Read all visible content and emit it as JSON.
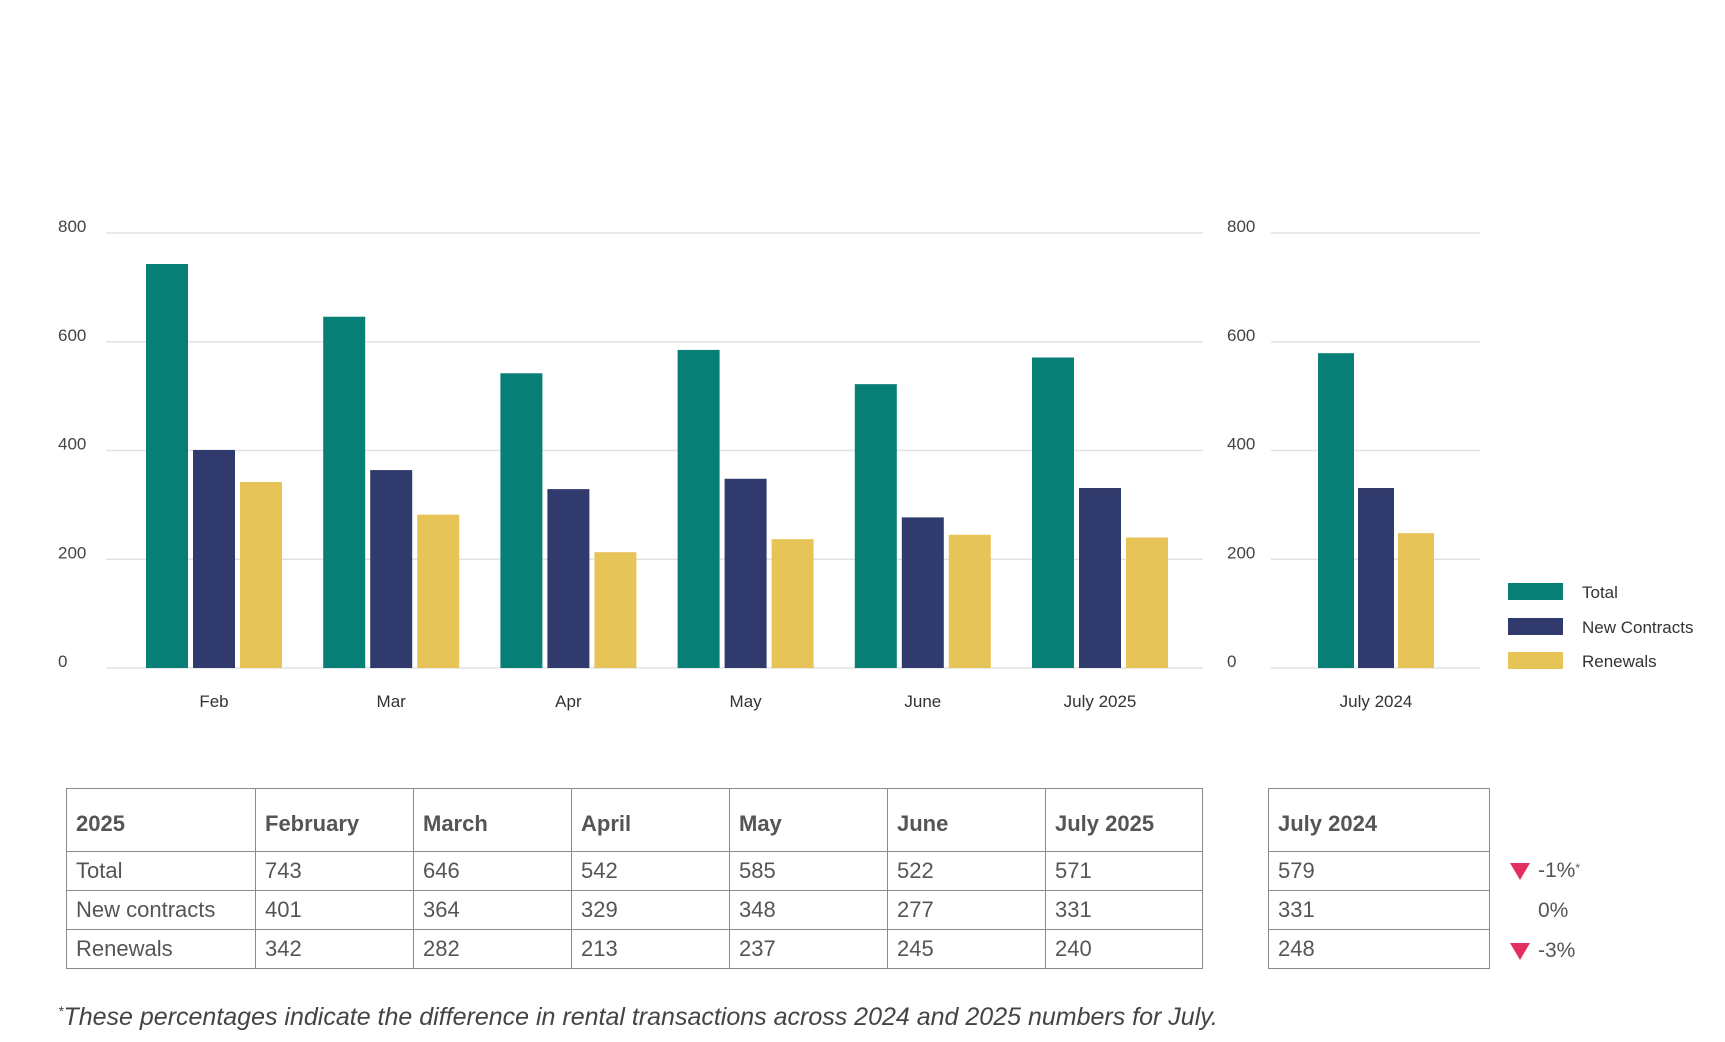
{
  "chart_data": [
    {
      "type": "bar",
      "categories": [
        "Feb",
        "Mar",
        "Apr",
        "May",
        "June",
        "July 2025"
      ],
      "series": [
        {
          "name": "Total",
          "values": [
            743,
            646,
            542,
            585,
            522,
            571
          ]
        },
        {
          "name": "New Contracts",
          "values": [
            401,
            364,
            329,
            348,
            277,
            331
          ]
        },
        {
          "name": "Renewals",
          "values": [
            342,
            282,
            213,
            237,
            245,
            240
          ]
        }
      ],
      "ylim": [
        0,
        800
      ],
      "yticks": [
        0,
        200,
        400,
        600,
        800
      ],
      "grid": true
    },
    {
      "type": "bar",
      "categories": [
        "July 2024"
      ],
      "series": [
        {
          "name": "Total",
          "values": [
            579
          ]
        },
        {
          "name": "New Contracts",
          "values": [
            331
          ]
        },
        {
          "name": "Renewals",
          "values": [
            248
          ]
        }
      ],
      "ylim": [
        0,
        800
      ],
      "yticks": [
        0,
        200,
        400,
        600,
        800
      ],
      "grid": true
    }
  ],
  "legend": {
    "placement": "right",
    "items": [
      {
        "label": "Total",
        "color": "#077e76"
      },
      {
        "label": "New Contracts",
        "color": "#303a6c"
      },
      {
        "label": "Renewals",
        "color": "#e6c458"
      }
    ]
  },
  "table": {
    "headers": [
      "2025",
      "February",
      "March",
      "April",
      "May",
      "June",
      "July 2025"
    ],
    "rows": [
      [
        "Total",
        "743",
        "646",
        "542",
        "585",
        "522",
        "571"
      ],
      [
        "New contracts",
        "401",
        "364",
        "329",
        "348",
        "277",
        "331"
      ],
      [
        "Renewals",
        "342",
        "282",
        "213",
        "237",
        "245",
        "240"
      ]
    ]
  },
  "comparison_table": {
    "header": "July 2024",
    "rows": [
      "579",
      "331",
      "248"
    ]
  },
  "differences": [
    {
      "value": "-1%",
      "direction": "down",
      "footnote_mark": "*"
    },
    {
      "value": "0%",
      "direction": "none",
      "footnote_mark": ""
    },
    {
      "value": "-3%",
      "direction": "down",
      "footnote_mark": ""
    }
  ],
  "footnote": {
    "mark": "*",
    "text": "These percentages indicate the difference in rental transactions across 2024 and 2025 numbers for July."
  }
}
